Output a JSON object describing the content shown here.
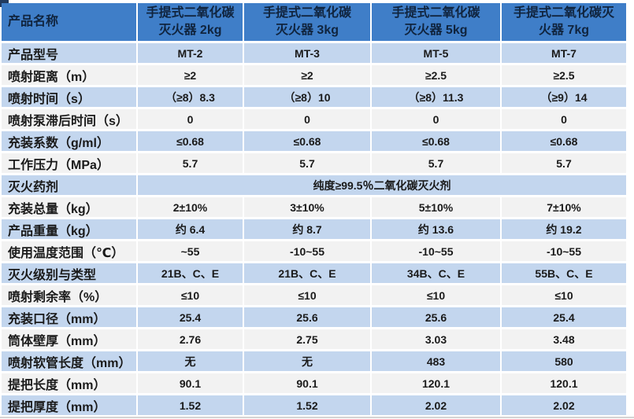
{
  "colors": {
    "header_bg": "#3F7EC8",
    "header_text": "#10243E",
    "row_blue": "#C3D6EE",
    "row_gray": "#F2F2F2",
    "separator": "#FFFFFF",
    "text": "#1A1A1A",
    "handle": "#203A5F",
    "bottom_line": "#D4D4D4"
  },
  "table": {
    "header": {
      "label": "产品名称",
      "columns": [
        "手提式二氧化碳\n灭火器 2kg",
        "手提式二氧化碳\n灭火器 3kg",
        "手提式二氧化碳\n灭火器 5kg",
        "手提式二氧化碳灭\n火器 7kg"
      ]
    },
    "rows": [
      {
        "label": "产品型号",
        "values": [
          "MT-2",
          "MT-3",
          "MT-5",
          "MT-7"
        ]
      },
      {
        "label": "喷射距离（m）",
        "values": [
          "≥2",
          "≥2",
          "≥2.5",
          "≥2.5"
        ]
      },
      {
        "label": "喷射时间（s）",
        "values": [
          "（≥8）8.3",
          "（≥8）10",
          "（≥8）11.3",
          "（≥9）14"
        ]
      },
      {
        "label": "喷射泵滞后时间（s）",
        "values": [
          "0",
          "0",
          "0",
          "0"
        ]
      },
      {
        "label": "充装系数（g/ml）",
        "values": [
          "≤0.68",
          "≤0.68",
          "≤0.68",
          "≤0.68"
        ]
      },
      {
        "label": "工作压力（MPa）",
        "values": [
          "5.7",
          "5.7",
          "5.7",
          "5.7"
        ]
      },
      {
        "label": "灭火药剂",
        "merged": "纯度≥99.5％二氧化碳灭火剂"
      },
      {
        "label": "充装总量（kg）",
        "values": [
          "2±10%",
          "3±10%",
          "5±10%",
          "7±10%"
        ]
      },
      {
        "label": "产品重量（kg）",
        "values": [
          "约 6.4",
          "约 8.7",
          "约 13.6",
          "约 19.2"
        ]
      },
      {
        "label": "使用温度范围（℃）",
        "values": [
          "~55",
          "-10~55",
          "-10~55",
          "-10~55"
        ]
      },
      {
        "label": "灭火级别与类型",
        "values": [
          "21B、C、E",
          "21B、C、E",
          "34B、C、E",
          "55B、C、E"
        ]
      },
      {
        "label": "喷射剩余率（%）",
        "values": [
          "≤10",
          "≤10",
          "≤10",
          "≤10"
        ]
      },
      {
        "label": "充装口径（mm）",
        "values": [
          "25.4",
          "25.6",
          "25.6",
          "25.4"
        ]
      },
      {
        "label": "筒体壁厚（mm）",
        "values": [
          "2.76",
          "2.75",
          "3.03",
          "3.48"
        ]
      },
      {
        "label": "喷射软管长度（mm）",
        "values": [
          "无",
          "无",
          "483",
          "580"
        ]
      },
      {
        "label": "提把长度（mm）",
        "values": [
          "90.1",
          "90.1",
          "120.1",
          "120.1"
        ]
      },
      {
        "label": "提把厚度（mm）",
        "values": [
          "1.52",
          "1.52",
          "2.02",
          "2.02"
        ]
      }
    ]
  }
}
